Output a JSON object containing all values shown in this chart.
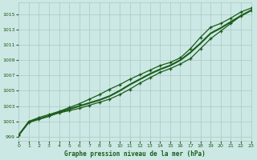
{
  "title": "Graphe pression niveau de la mer (hPa)",
  "background_color": "#cce8e4",
  "grid_color": "#aac8c4",
  "line_color": "#1a5c1a",
  "xlim": [
    0,
    23
  ],
  "ylim": [
    998.5,
    1016.5
  ],
  "yticks": [
    999,
    1001,
    1003,
    1005,
    1007,
    1009,
    1011,
    1013,
    1015
  ],
  "xticks": [
    0,
    1,
    2,
    3,
    4,
    5,
    6,
    7,
    8,
    9,
    10,
    11,
    12,
    13,
    14,
    15,
    16,
    17,
    18,
    19,
    20,
    21,
    22,
    23
  ],
  "series_main": {
    "x": [
      0,
      1,
      2,
      3,
      4,
      5,
      6,
      7,
      8,
      9,
      10,
      11,
      12,
      13,
      14,
      15,
      16,
      17,
      18,
      19,
      20,
      21,
      22,
      23
    ],
    "y": [
      999.2,
      1000.9,
      1001.3,
      1001.7,
      1002.2,
      1002.6,
      1003.0,
      1003.4,
      1003.8,
      1004.3,
      1005.0,
      1005.8,
      1006.5,
      1007.2,
      1007.8,
      1008.3,
      1009.0,
      1010.0,
      1011.2,
      1012.5,
      1013.2,
      1014.0,
      1014.8,
      1015.5
    ]
  },
  "series_above": {
    "x": [
      0,
      1,
      2,
      3,
      4,
      5,
      6,
      7,
      8,
      9,
      10,
      11,
      12,
      13,
      14,
      15,
      16,
      17,
      18,
      19,
      20,
      21,
      22,
      23
    ],
    "y": [
      999.2,
      1001.0,
      1001.5,
      1001.9,
      1002.3,
      1002.8,
      1003.3,
      1003.9,
      1004.5,
      1005.2,
      1005.8,
      1006.5,
      1007.1,
      1007.7,
      1008.3,
      1008.7,
      1009.3,
      1010.5,
      1012.0,
      1013.3,
      1013.8,
      1014.5,
      1015.3,
      1015.8
    ]
  },
  "series_below": {
    "x": [
      0,
      1,
      2,
      3,
      4,
      5,
      6,
      7,
      8,
      9,
      10,
      11,
      12,
      13,
      14,
      15,
      16,
      17,
      18,
      19,
      20,
      21,
      22,
      23
    ],
    "y": [
      999.2,
      1000.9,
      1001.3,
      1001.7,
      1002.1,
      1002.4,
      1002.7,
      1003.1,
      1003.5,
      1003.9,
      1004.5,
      1005.2,
      1006.0,
      1006.7,
      1007.4,
      1007.9,
      1008.5,
      1009.2,
      1010.5,
      1011.8,
      1012.8,
      1013.8,
      1014.8,
      1015.5
    ]
  }
}
